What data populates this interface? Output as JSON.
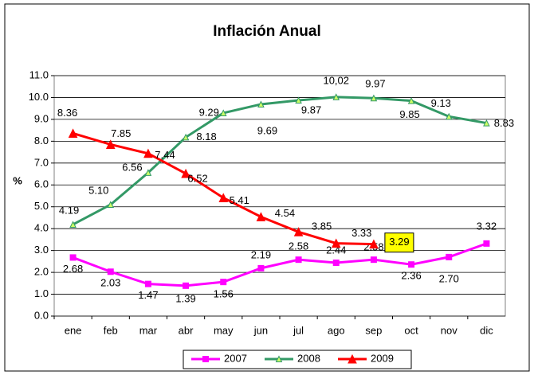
{
  "chart_data": {
    "type": "line",
    "title": "Inflación Anual",
    "y_label": "%",
    "categories": [
      "ene",
      "feb",
      "mar",
      "abr",
      "may",
      "jun",
      "jul",
      "ago",
      "sep",
      "oct",
      "nov",
      "dic"
    ],
    "series": [
      {
        "name": "2007",
        "color": "#ff00ff",
        "marker": "square",
        "values": [
          2.68,
          2.03,
          1.47,
          1.39,
          1.56,
          2.19,
          2.58,
          2.44,
          2.58,
          2.36,
          2.7,
          3.32
        ],
        "value_labels": [
          "2.68",
          "2.03",
          "1.47",
          "1.39",
          "1.56",
          "2.19",
          "2.58",
          "2.44",
          "2.58",
          "2.36",
          "2.70",
          "3.32"
        ]
      },
      {
        "name": "2008",
        "color": "#339966",
        "marker": "triangle-small",
        "values": [
          4.19,
          5.1,
          6.56,
          8.18,
          9.29,
          9.69,
          9.87,
          10.02,
          9.97,
          9.85,
          9.13,
          8.83
        ],
        "value_labels": [
          "4.19",
          "5.10",
          "6.56",
          "8.18",
          "9.29",
          "9.69",
          "9.87",
          "10,02",
          "9.97",
          "9.85",
          "9.13",
          "8.83"
        ]
      },
      {
        "name": "2009",
        "color": "#ff0000",
        "marker": "triangle",
        "values": [
          8.36,
          7.85,
          7.44,
          6.52,
          5.41,
          4.54,
          3.85,
          3.33,
          3.29,
          null,
          null,
          null
        ],
        "value_labels": [
          "8.36",
          "7.85",
          "7.44",
          "6.52",
          "5.41",
          "4.54",
          "3.85",
          "3.33",
          "3.29",
          null,
          null,
          null
        ]
      }
    ],
    "ylim": [
      0,
      11
    ],
    "yticks": [
      {
        "value": 0,
        "label": "0.0"
      },
      {
        "value": 1,
        "label": "1.0"
      },
      {
        "value": 2,
        "label": "2.0"
      },
      {
        "value": 3,
        "label": "3.0"
      },
      {
        "value": 4,
        "label": "4.0"
      },
      {
        "value": 5,
        "label": "5.0"
      },
      {
        "value": 6,
        "label": "6.0"
      },
      {
        "value": 7,
        "label": "7.0"
      },
      {
        "value": 8,
        "label": "8.0"
      },
      {
        "value": 9,
        "label": "9.0"
      },
      {
        "value": 10,
        "label": "10.0"
      },
      {
        "value": 11,
        "label": "11.0"
      }
    ],
    "grid": true,
    "legend": "bottom"
  }
}
